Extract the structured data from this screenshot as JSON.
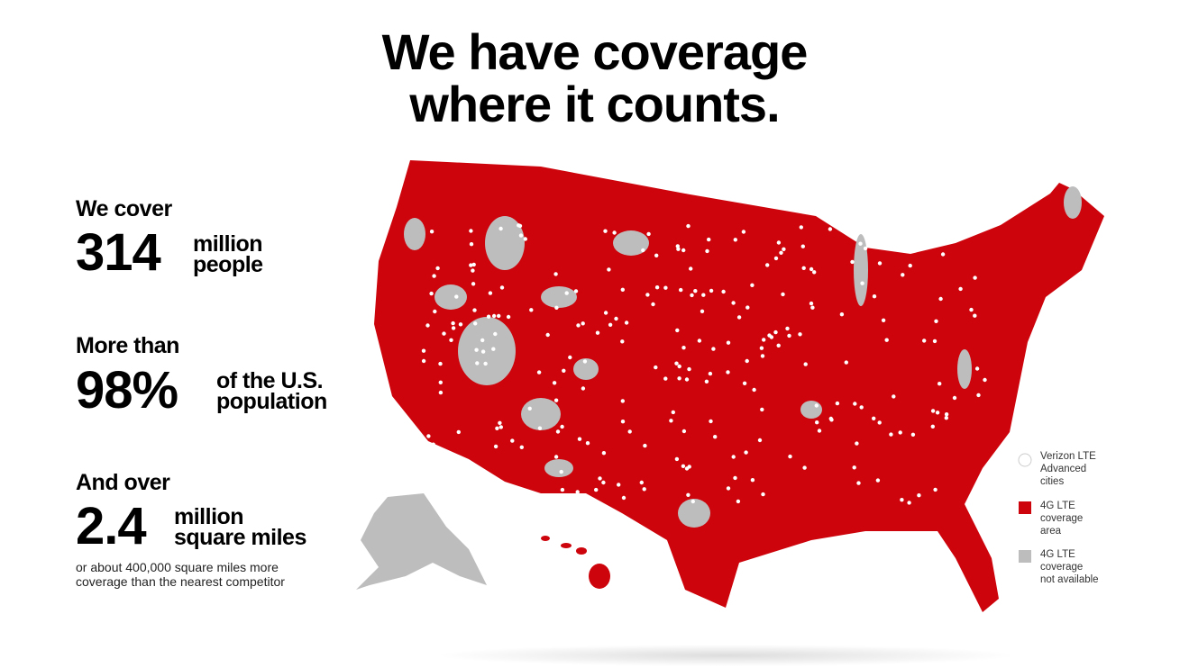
{
  "header": {
    "title": [
      "We have coverage",
      "where it counts."
    ]
  },
  "stats": [
    {
      "intro": "We cover",
      "value": "314",
      "unit": [
        "million",
        "people"
      ]
    },
    {
      "intro": "More than",
      "value": "98%",
      "unit": [
        "of the U.S.",
        "population"
      ]
    },
    {
      "intro": "And over",
      "value": "2.4",
      "unit": [
        "million",
        "square miles"
      ],
      "note": [
        "or about 400,000 square miles more",
        "coverage than the nearest competitor"
      ]
    }
  ],
  "legend": [
    {
      "lines": [
        "Verizon LTE",
        "Advanced",
        "cities"
      ]
    },
    {
      "lines": [
        "4G LTE",
        "coverage",
        "area"
      ]
    },
    {
      "lines": [
        "4G LTE",
        "coverage",
        "not available"
      ]
    }
  ]
}
